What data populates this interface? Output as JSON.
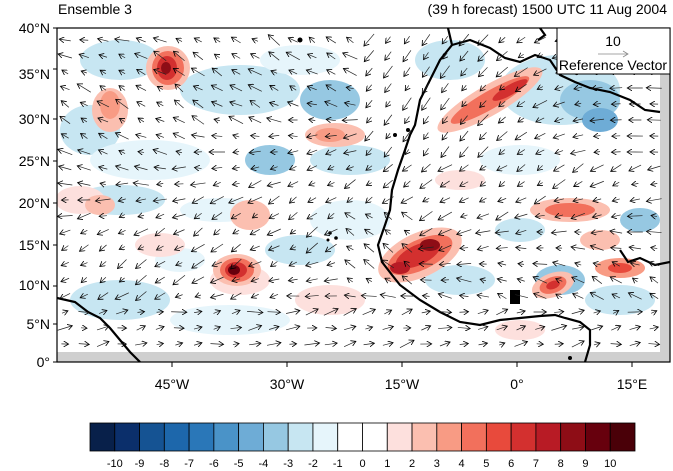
{
  "title_left": "Ensemble 3",
  "title_right": "(39 h forecast) 1500 UTC 11 Aug 2004",
  "lat_labels": [
    "40°N",
    "35°N",
    "30°N",
    "25°N",
    "20°N",
    "15°N",
    "10°N",
    "5°N",
    "0°"
  ],
  "lon_labels": [
    "45°W",
    "30°W",
    "15°W",
    "0°",
    "15°E"
  ],
  "reference_vector": {
    "value": "10",
    "label": "Reference Vector"
  },
  "colorbar": {
    "labels": [
      "-10",
      "-9",
      "-8",
      "-7",
      "-6",
      "-5",
      "-4",
      "-3",
      "-2",
      "-1",
      "0",
      "1",
      "2",
      "3",
      "4",
      "5",
      "6",
      "7",
      "8",
      "9",
      "10"
    ],
    "colors": [
      "#08204a",
      "#0b2f6b",
      "#155393",
      "#1d67ab",
      "#2a77b8",
      "#4a93c8",
      "#6eacd6",
      "#96c8e2",
      "#c7e6f2",
      "#e6f5fb",
      "#ffffff",
      "#ffffff",
      "#fde0dd",
      "#fbbfb0",
      "#f89b84",
      "#f2705c",
      "#e84a3c",
      "#d3302f",
      "#b81b25",
      "#8e0d16",
      "#67000d",
      "#4a0008"
    ]
  }
}
